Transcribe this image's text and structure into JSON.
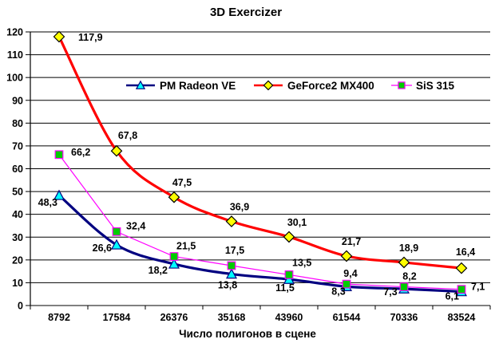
{
  "title": "3D Exercizer",
  "chart_data": {
    "type": "line",
    "title": "3D Exercizer",
    "xlabel": "Число полигонов в сцене",
    "ylabel": "",
    "ylim": [
      0,
      120
    ],
    "ytick_step": 10,
    "grid": true,
    "legend_position": "inside-top-horizontal",
    "decimal_separator": ",",
    "categories": [
      "8792",
      "17584",
      "26376",
      "35168",
      "43960",
      "61544",
      "70336",
      "83524"
    ],
    "yticks": [
      "0",
      "10",
      "20",
      "30",
      "40",
      "50",
      "60",
      "70",
      "80",
      "90",
      "100",
      "110",
      "120"
    ],
    "series": [
      {
        "name": "PM Radeon VE",
        "values": [
          48.3,
          26.6,
          18.2,
          13.8,
          11.5,
          8.3,
          7.3,
          6.1
        ],
        "labels": [
          "48,3",
          "26,6",
          "18,2",
          "13,8",
          "11,5",
          "8,3",
          "7,3",
          "6,1"
        ],
        "line_color": "#000080",
        "line_width": 3.2,
        "marker": "triangle",
        "marker_fill": "#00FFFF",
        "marker_stroke": "#000080"
      },
      {
        "name": "GeForce2 MX400",
        "values": [
          117.9,
          67.8,
          47.5,
          36.9,
          30.1,
          21.7,
          18.9,
          16.4
        ],
        "labels": [
          "117,9",
          "67,8",
          "47,5",
          "36,9",
          "30,1",
          "21,7",
          "18,9",
          "16,4"
        ],
        "line_color": "#FF0000",
        "line_width": 3.2,
        "marker": "diamond",
        "marker_fill": "#FFFF00",
        "marker_stroke": "#000000"
      },
      {
        "name": "SiS 315",
        "values": [
          66.2,
          32.4,
          21.5,
          17.5,
          13.5,
          9.4,
          8.2,
          7.1
        ],
        "labels": [
          "66,2",
          "32,4",
          "21,5",
          "17,5",
          "13,5",
          "9,4",
          "8,2",
          "7,1"
        ],
        "line_color": "#FF00FF",
        "line_width": 1.2,
        "marker": "square",
        "marker_fill": "#00CC00",
        "marker_stroke": "#FF00FF"
      }
    ],
    "axis_color": "#000000",
    "grid_color": "#000000",
    "background_color": "#FFFFFF"
  }
}
